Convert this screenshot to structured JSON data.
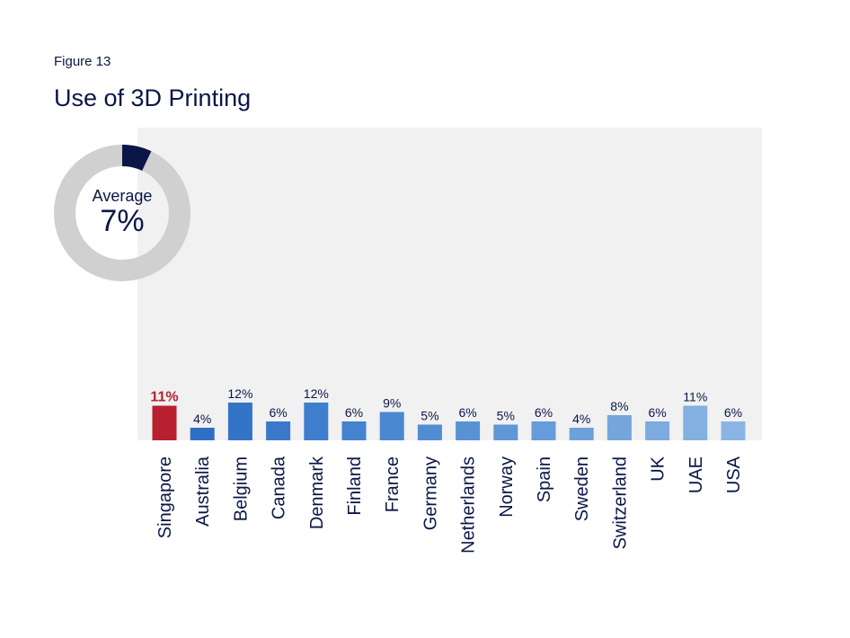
{
  "figure_label": "Figure 13",
  "chart_data": {
    "type": "bar",
    "title": "Use of 3D Printing",
    "categories": [
      "Singapore",
      "Australia",
      "Belgium",
      "Canada",
      "Denmark",
      "Finland",
      "France",
      "Germany",
      "Netherlands",
      "Norway",
      "Spain",
      "Sweden",
      "Switzerland",
      "UK",
      "UAE",
      "USA"
    ],
    "values": [
      11,
      4,
      12,
      6,
      12,
      6,
      9,
      5,
      6,
      5,
      6,
      4,
      8,
      6,
      11,
      6
    ],
    "value_labels": [
      "11%",
      "4%",
      "12%",
      "6%",
      "12%",
      "6%",
      "9%",
      "5%",
      "6%",
      "5%",
      "6%",
      "4%",
      "8%",
      "6%",
      "11%",
      "6%"
    ],
    "ylim": [
      0,
      100
    ],
    "highlight_category": "Singapore",
    "bar_colors": [
      "#b8202f",
      "#2f6fc3",
      "#3474c6",
      "#3a79c9",
      "#3f7ecc",
      "#4583ce",
      "#4b88d1",
      "#528dd3",
      "#5892d5",
      "#5f97d7",
      "#669cd9",
      "#6da1db",
      "#74a6dd",
      "#7babdf",
      "#82b0e1",
      "#8ab5e3"
    ],
    "plot_background": "#f1f1f1",
    "average": {
      "label": "Average",
      "value": 7,
      "value_label": "7%"
    },
    "colors": {
      "text": "#0b1647",
      "highlight_text": "#b8202f",
      "donut_track": "#d0d0d0",
      "donut_fill": "#0b1647"
    }
  }
}
